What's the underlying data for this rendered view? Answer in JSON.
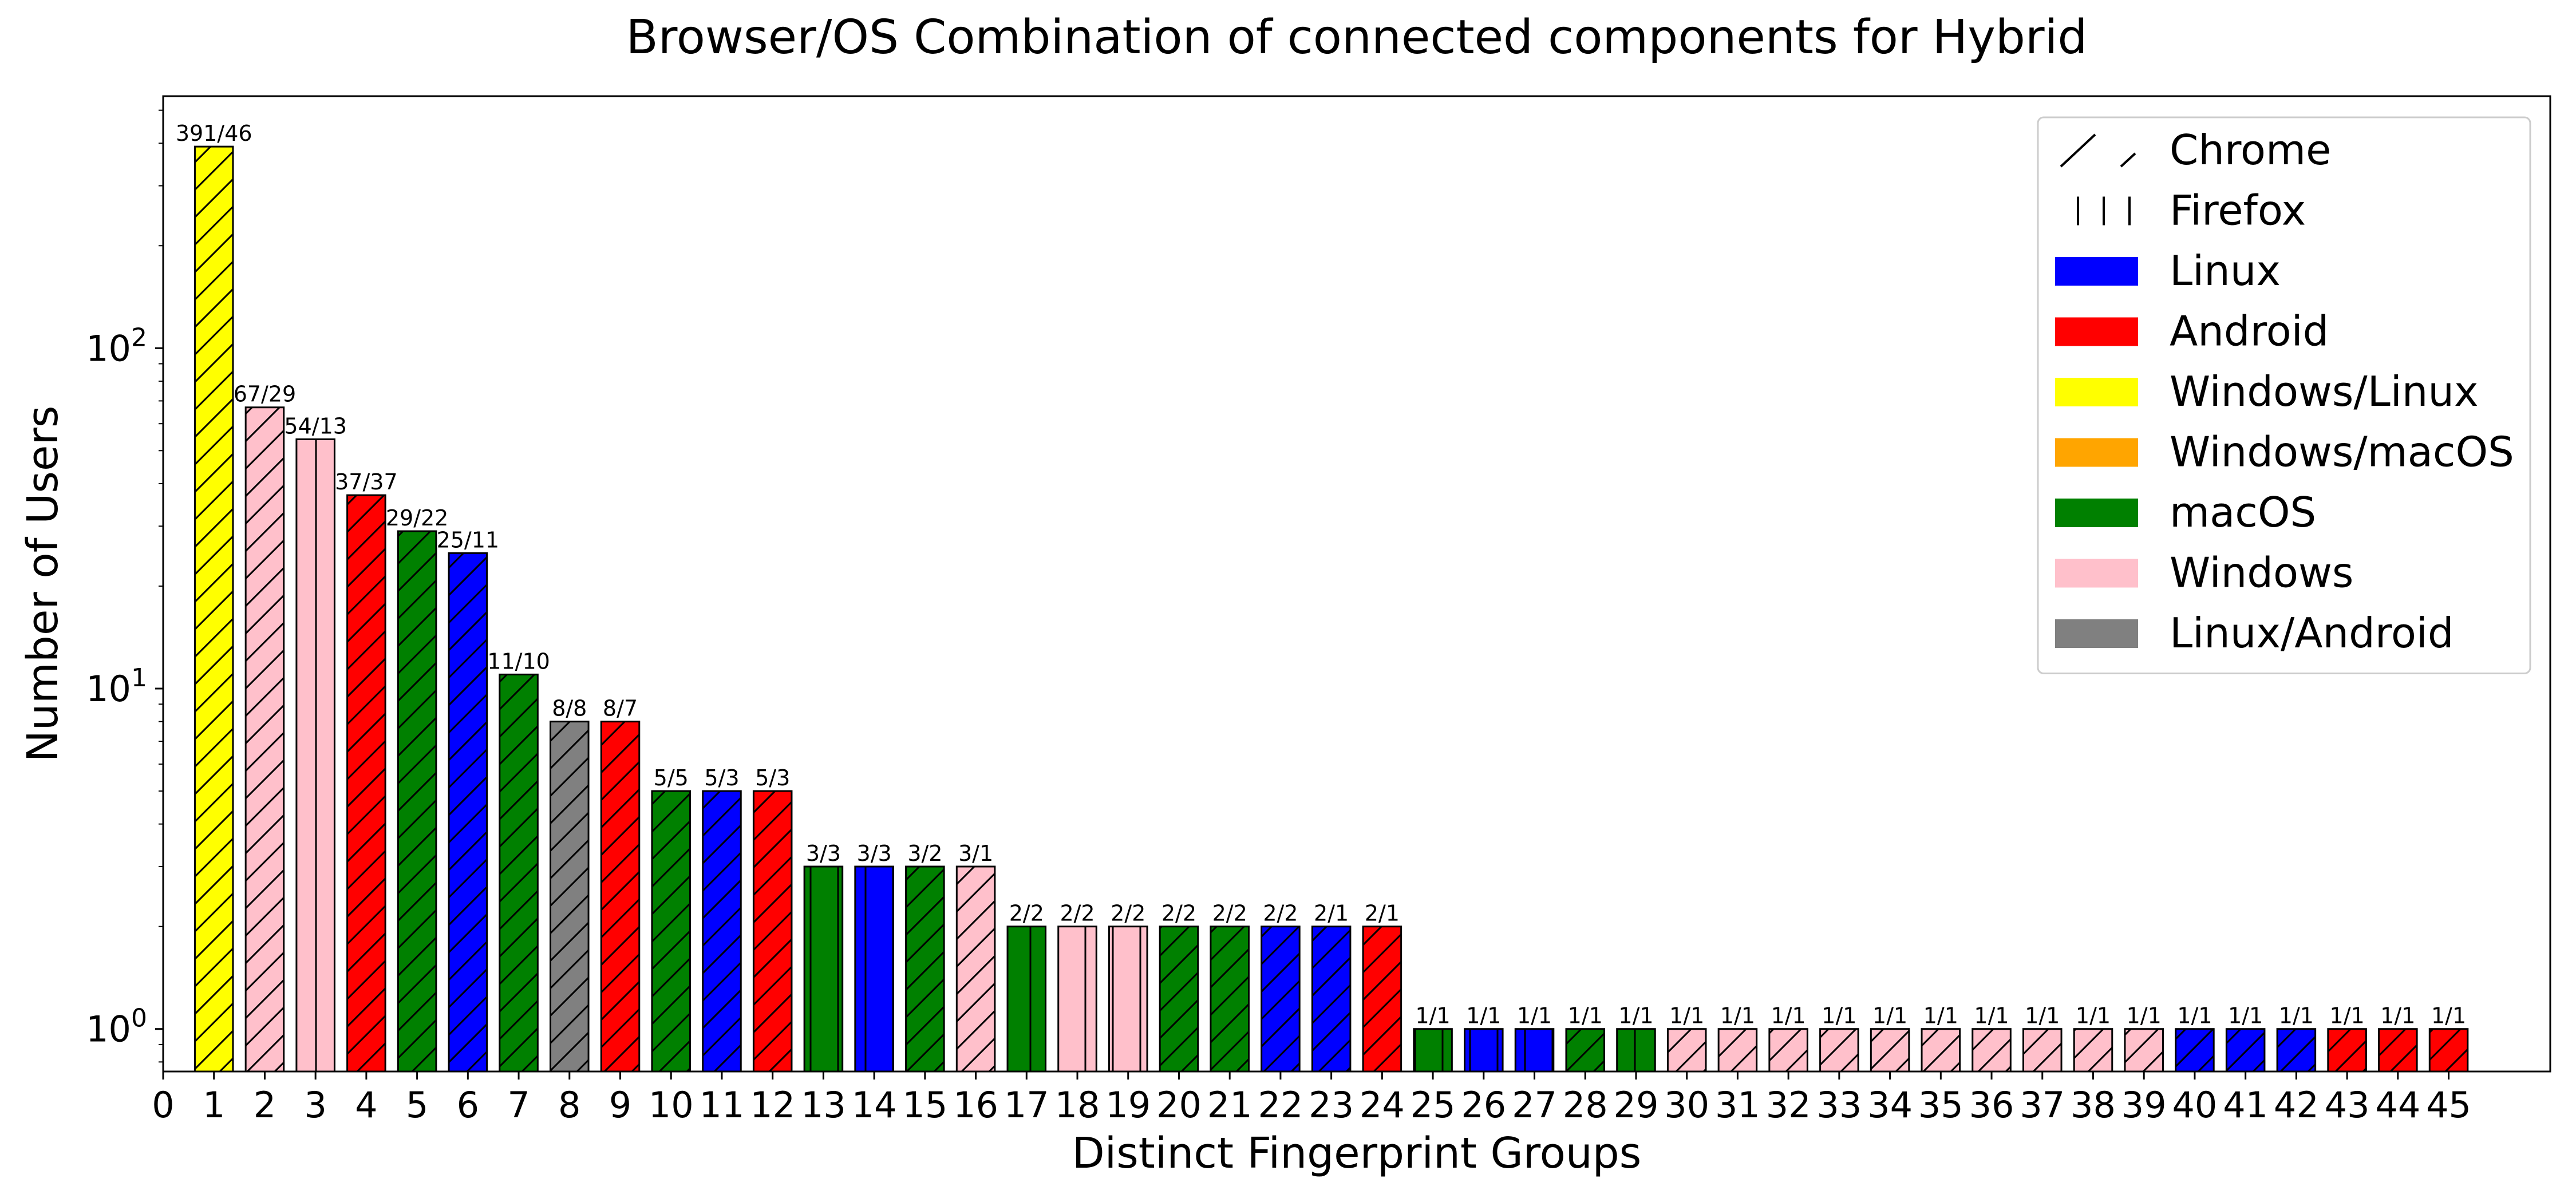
{
  "chart_data": {
    "type": "bar",
    "title": "Browser/OS Combination of connected components for Hybrid",
    "xlabel": "Distinct Fingerprint Groups",
    "ylabel": "Number of Users",
    "yscale": "log",
    "ylim": [
      0.75,
      550
    ],
    "xlim": [
      0,
      47
    ],
    "x_ticks": [
      0,
      1,
      2,
      3,
      4,
      5,
      6,
      7,
      8,
      9,
      10,
      11,
      12,
      13,
      14,
      15,
      16,
      17,
      18,
      19,
      20,
      21,
      22,
      23,
      24,
      25,
      26,
      27,
      28,
      29,
      30,
      31,
      32,
      33,
      34,
      35,
      36,
      37,
      38,
      39,
      40,
      41,
      42,
      43,
      44,
      45
    ],
    "y_ticks": [
      {
        "value": 1,
        "base": "10",
        "exp": "0"
      },
      {
        "value": 10,
        "base": "10",
        "exp": "1"
      },
      {
        "value": 100,
        "base": "10",
        "exp": "2"
      }
    ],
    "grid": false,
    "legend_position": "top-right",
    "legend": [
      {
        "label": "Chrome",
        "kind": "hatch",
        "hatch": "chrome"
      },
      {
        "label": "Firefox",
        "kind": "hatch",
        "hatch": "firefox"
      },
      {
        "label": "Linux",
        "kind": "color",
        "os": "Linux"
      },
      {
        "label": "Android",
        "kind": "color",
        "os": "Android"
      },
      {
        "label": "Windows/Linux",
        "kind": "color",
        "os": "Windows/Linux"
      },
      {
        "label": "Windows/macOS",
        "kind": "color",
        "os": "Windows/macOS"
      },
      {
        "label": "macOS",
        "kind": "color",
        "os": "macOS"
      },
      {
        "label": "Windows",
        "kind": "color",
        "os": "Windows"
      },
      {
        "label": "Linux/Android",
        "kind": "color",
        "os": "Linux/Android"
      }
    ],
    "colors": {
      "Linux": "#0000ff",
      "Android": "#ff0000",
      "Windows/Linux": "#ffff00",
      "Windows/macOS": "#ffa500",
      "macOS": "#008000",
      "Windows": "#ffc0cb",
      "Linux/Android": "#808080"
    },
    "bars": [
      {
        "x": 1,
        "value": 391,
        "label": "391/46",
        "os": "Windows/Linux",
        "browser": "Chrome"
      },
      {
        "x": 2,
        "value": 67,
        "label": "67/29",
        "os": "Windows",
        "browser": "Chrome"
      },
      {
        "x": 3,
        "value": 54,
        "label": "54/13",
        "os": "Windows",
        "browser": "Firefox"
      },
      {
        "x": 4,
        "value": 37,
        "label": "37/37",
        "os": "Android",
        "browser": "Chrome"
      },
      {
        "x": 5,
        "value": 29,
        "label": "29/22",
        "os": "macOS",
        "browser": "Chrome"
      },
      {
        "x": 6,
        "value": 25,
        "label": "25/11",
        "os": "Linux",
        "browser": "Chrome"
      },
      {
        "x": 7,
        "value": 11,
        "label": "11/10",
        "os": "macOS",
        "browser": "Chrome"
      },
      {
        "x": 8,
        "value": 8,
        "label": "8/8",
        "os": "Linux/Android",
        "browser": "Chrome"
      },
      {
        "x": 9,
        "value": 8,
        "label": "8/7",
        "os": "Android",
        "browser": "Chrome"
      },
      {
        "x": 10,
        "value": 5,
        "label": "5/5",
        "os": "macOS",
        "browser": "Chrome"
      },
      {
        "x": 11,
        "value": 5,
        "label": "5/3",
        "os": "Linux",
        "browser": "Chrome"
      },
      {
        "x": 12,
        "value": 5,
        "label": "5/3",
        "os": "Android",
        "browser": "Chrome"
      },
      {
        "x": 13,
        "value": 3,
        "label": "3/3",
        "os": "macOS",
        "browser": "Firefox"
      },
      {
        "x": 14,
        "value": 3,
        "label": "3/3",
        "os": "Linux",
        "browser": "Firefox"
      },
      {
        "x": 15,
        "value": 3,
        "label": "3/2",
        "os": "macOS",
        "browser": "Chrome"
      },
      {
        "x": 16,
        "value": 3,
        "label": "3/1",
        "os": "Windows",
        "browser": "Chrome"
      },
      {
        "x": 17,
        "value": 2,
        "label": "2/2",
        "os": "macOS",
        "browser": "Firefox"
      },
      {
        "x": 18,
        "value": 2,
        "label": "2/2",
        "os": "Windows",
        "browser": "Firefox"
      },
      {
        "x": 19,
        "value": 2,
        "label": "2/2",
        "os": "Windows",
        "browser": "Firefox"
      },
      {
        "x": 20,
        "value": 2,
        "label": "2/2",
        "os": "macOS",
        "browser": "Chrome"
      },
      {
        "x": 21,
        "value": 2,
        "label": "2/2",
        "os": "macOS",
        "browser": "Chrome"
      },
      {
        "x": 22,
        "value": 2,
        "label": "2/2",
        "os": "Linux",
        "browser": "Chrome"
      },
      {
        "x": 23,
        "value": 2,
        "label": "2/1",
        "os": "Linux",
        "browser": "Chrome"
      },
      {
        "x": 24,
        "value": 2,
        "label": "2/1",
        "os": "Android",
        "browser": "Chrome"
      },
      {
        "x": 25,
        "value": 1,
        "label": "1/1",
        "os": "macOS",
        "browser": "Firefox"
      },
      {
        "x": 26,
        "value": 1,
        "label": "1/1",
        "os": "Linux",
        "browser": "Firefox"
      },
      {
        "x": 27,
        "value": 1,
        "label": "1/1",
        "os": "Linux",
        "browser": "Firefox"
      },
      {
        "x": 28,
        "value": 1,
        "label": "1/1",
        "os": "macOS",
        "browser": "Chrome"
      },
      {
        "x": 29,
        "value": 1,
        "label": "1/1",
        "os": "macOS",
        "browser": "Firefox"
      },
      {
        "x": 30,
        "value": 1,
        "label": "1/1",
        "os": "Windows",
        "browser": "Chrome"
      },
      {
        "x": 31,
        "value": 1,
        "label": "1/1",
        "os": "Windows",
        "browser": "Chrome"
      },
      {
        "x": 32,
        "value": 1,
        "label": "1/1",
        "os": "Windows",
        "browser": "Chrome"
      },
      {
        "x": 33,
        "value": 1,
        "label": "1/1",
        "os": "Windows",
        "browser": "Chrome"
      },
      {
        "x": 34,
        "value": 1,
        "label": "1/1",
        "os": "Windows",
        "browser": "Chrome"
      },
      {
        "x": 35,
        "value": 1,
        "label": "1/1",
        "os": "Windows",
        "browser": "Chrome"
      },
      {
        "x": 36,
        "value": 1,
        "label": "1/1",
        "os": "Windows",
        "browser": "Chrome"
      },
      {
        "x": 37,
        "value": 1,
        "label": "1/1",
        "os": "Windows",
        "browser": "Chrome"
      },
      {
        "x": 38,
        "value": 1,
        "label": "1/1",
        "os": "Windows",
        "browser": "Chrome"
      },
      {
        "x": 39,
        "value": 1,
        "label": "1/1",
        "os": "Windows",
        "browser": "Chrome"
      },
      {
        "x": 40,
        "value": 1,
        "label": "1/1",
        "os": "Linux",
        "browser": "Chrome"
      },
      {
        "x": 41,
        "value": 1,
        "label": "1/1",
        "os": "Linux",
        "browser": "Chrome"
      },
      {
        "x": 42,
        "value": 1,
        "label": "1/1",
        "os": "Linux",
        "browser": "Chrome"
      },
      {
        "x": 43,
        "value": 1,
        "label": "1/1",
        "os": "Android",
        "browser": "Chrome"
      },
      {
        "x": 44,
        "value": 1,
        "label": "1/1",
        "os": "Android",
        "browser": "Chrome"
      },
      {
        "x": 45,
        "value": 1,
        "label": "1/1",
        "os": "Android",
        "browser": "Chrome"
      }
    ]
  }
}
